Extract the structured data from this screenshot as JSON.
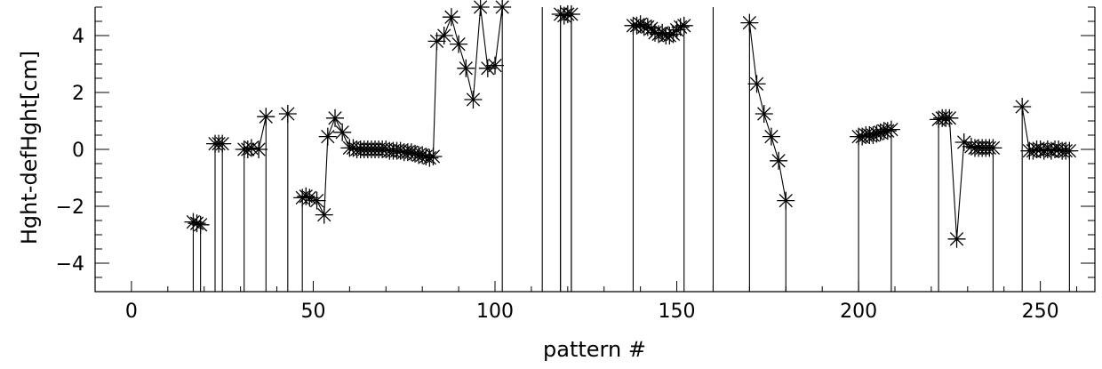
{
  "chart_data": {
    "type": "scatter",
    "title": "",
    "xlabel": "pattern #",
    "ylabel": "Hght-defHght[cm]",
    "xlim": [
      -10,
      265
    ],
    "ylim": [
      -5,
      5
    ],
    "x_ticks": [
      0,
      50,
      100,
      150,
      200,
      250
    ],
    "y_ticks": [
      -4,
      -2,
      0,
      2,
      4
    ],
    "x_tick_labels": [
      "0",
      "50",
      "100",
      "150",
      "200",
      "250"
    ],
    "y_tick_labels": [
      "−4",
      "−2",
      "0",
      "2",
      "4"
    ],
    "grid": false,
    "marker": "asterisk",
    "line_color": "#000000",
    "points": [
      [
        17,
        -2.55
      ],
      [
        18,
        -2.6
      ],
      [
        19,
        -2.65
      ],
      [
        23,
        0.2
      ],
      [
        24,
        0.2
      ],
      [
        25,
        0.2
      ],
      [
        31,
        0.0
      ],
      [
        32,
        0.0
      ],
      [
        33,
        0.05
      ],
      [
        35,
        0.0
      ],
      [
        37,
        1.15
      ],
      [
        43,
        1.25
      ],
      [
        47,
        -1.7
      ],
      [
        48,
        -1.65
      ],
      [
        49,
        -1.7
      ],
      [
        51,
        -1.8
      ],
      [
        53,
        -2.3
      ],
      [
        54,
        0.45
      ],
      [
        56,
        1.1
      ],
      [
        58,
        0.6
      ],
      [
        60,
        0.05
      ],
      [
        61,
        0.05
      ],
      [
        62,
        0.0
      ],
      [
        63,
        0.0
      ],
      [
        64,
        0.0
      ],
      [
        65,
        0.0
      ],
      [
        66,
        0.0
      ],
      [
        67,
        0.0
      ],
      [
        68,
        0.0
      ],
      [
        69,
        0.0
      ],
      [
        70,
        0.0
      ],
      [
        71,
        -0.05
      ],
      [
        72,
        -0.05
      ],
      [
        73,
        -0.05
      ],
      [
        74,
        -0.05
      ],
      [
        75,
        -0.1
      ],
      [
        76,
        -0.1
      ],
      [
        77,
        -0.1
      ],
      [
        78,
        -0.15
      ],
      [
        79,
        -0.2
      ],
      [
        80,
        -0.2
      ],
      [
        81,
        -0.25
      ],
      [
        82,
        -0.3
      ],
      [
        83,
        -0.25
      ],
      [
        84,
        3.8
      ],
      [
        86,
        4.0
      ],
      [
        88,
        4.65
      ],
      [
        90,
        3.7
      ],
      [
        92,
        2.85
      ],
      [
        94,
        1.75
      ],
      [
        96,
        5.0
      ],
      [
        98,
        2.85
      ],
      [
        100,
        2.95
      ],
      [
        102,
        5.0
      ],
      [
        118,
        4.75
      ],
      [
        119,
        4.7
      ],
      [
        120,
        4.75
      ],
      [
        121,
        4.75
      ],
      [
        138,
        4.35
      ],
      [
        139,
        4.35
      ],
      [
        140,
        4.4
      ],
      [
        141,
        4.3
      ],
      [
        142,
        4.3
      ],
      [
        143,
        4.25
      ],
      [
        144,
        4.1
      ],
      [
        145,
        4.05
      ],
      [
        146,
        4.1
      ],
      [
        147,
        4.0
      ],
      [
        148,
        4.0
      ],
      [
        149,
        4.05
      ],
      [
        150,
        4.2
      ],
      [
        151,
        4.3
      ],
      [
        152,
        4.35
      ],
      [
        170,
        4.45
      ],
      [
        172,
        2.3
      ],
      [
        174,
        1.25
      ],
      [
        176,
        0.45
      ],
      [
        178,
        -0.4
      ],
      [
        180,
        -1.8
      ],
      [
        200,
        0.45
      ],
      [
        201,
        0.45
      ],
      [
        202,
        0.5
      ],
      [
        203,
        0.5
      ],
      [
        204,
        0.5
      ],
      [
        205,
        0.55
      ],
      [
        206,
        0.6
      ],
      [
        207,
        0.65
      ],
      [
        208,
        0.65
      ],
      [
        209,
        0.7
      ],
      [
        222,
        1.05
      ],
      [
        223,
        1.1
      ],
      [
        224,
        1.1
      ],
      [
        225,
        1.1
      ],
      [
        227,
        -3.15
      ],
      [
        229,
        0.25
      ],
      [
        231,
        0.1
      ],
      [
        232,
        0.05
      ],
      [
        233,
        0.05
      ],
      [
        234,
        0.05
      ],
      [
        235,
        0.05
      ],
      [
        236,
        0.05
      ],
      [
        237,
        0.05
      ],
      [
        245,
        1.5
      ],
      [
        247,
        -0.05
      ],
      [
        248,
        -0.05
      ],
      [
        249,
        0.0
      ],
      [
        250,
        0.0
      ],
      [
        251,
        -0.05
      ],
      [
        252,
        0.0
      ],
      [
        253,
        -0.05
      ],
      [
        254,
        0.0
      ],
      [
        255,
        0.0
      ],
      [
        256,
        -0.05
      ],
      [
        257,
        -0.05
      ],
      [
        258,
        -0.05
      ]
    ]
  }
}
